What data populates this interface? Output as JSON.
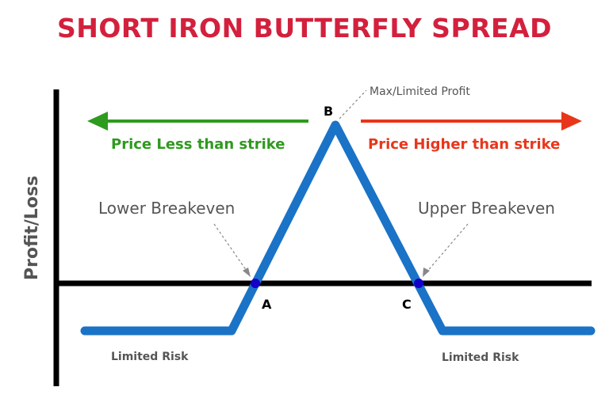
{
  "title": "SHORT IRON BUTTERFLY SPREAD",
  "y_axis_label": "Profit/Loss",
  "left_arrow_label": "Price Less than strike",
  "right_arrow_label": "Price Higher than strike",
  "max_profit_label": "Max/Limited Profit",
  "lower_breakeven_label": "Lower Breakeven",
  "upper_breakeven_label": "Upper Breakeven",
  "point_a": "A",
  "point_b": "B",
  "point_c": "C",
  "limited_risk_left": "Limited Risk",
  "limited_risk_right": "Limited Risk",
  "colors": {
    "title": "#d3203d",
    "payoff_line": "#1a73c6",
    "left_arrow": "#2e9a1e",
    "right_arrow": "#e8361b",
    "axis": "#000000",
    "breakeven_dot": "#1400c8",
    "annotation_text": "#555555"
  }
}
